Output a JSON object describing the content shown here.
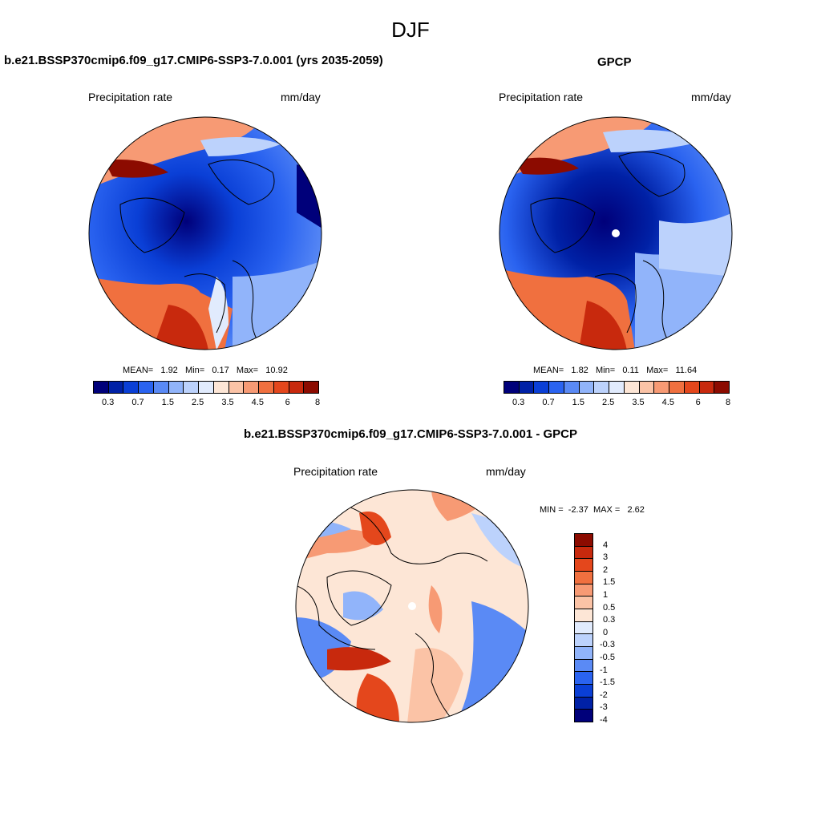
{
  "main_title": "DJF",
  "panels": [
    {
      "title": "b.e21.BSSP370cmip6.f09_g17.CMIP6-SSP3-7.0.001 (yrs 2035-2059)",
      "left_label": "Precipitation rate",
      "right_label": "mm/day",
      "stats": {
        "mean_label": "MEAN=",
        "mean": "1.92",
        "min_label": "Min=",
        "min": "0.17",
        "max_label": "Max=",
        "max": "10.92"
      }
    },
    {
      "title": "GPCP",
      "left_label": "Precipitation rate",
      "right_label": "mm/day",
      "stats": {
        "mean_label": "MEAN=",
        "mean": "1.82",
        "min_label": "Min=",
        "min": "0.11",
        "max_label": "Max=",
        "max": "11.64"
      }
    },
    {
      "title": "b.e21.BSSP370cmip6.f09_g17.CMIP6-SSP3-7.0.001 - GPCP",
      "left_label": "Precipitation rate",
      "right_label": "mm/day",
      "stats": {
        "min_label": "MIN =",
        "min": "-2.37",
        "max_label": "MAX =",
        "max": "2.62"
      }
    }
  ],
  "precip_colorbar": {
    "colors": [
      "#00007a",
      "#0021a6",
      "#0a3fd6",
      "#2a63f0",
      "#5a8af5",
      "#91b4fa",
      "#bcd2fc",
      "#e1ebfd",
      "#fde6d6",
      "#fbc3a6",
      "#f79a74",
      "#f0703f",
      "#e4471c",
      "#c8290d",
      "#8c0b00"
    ],
    "ticks": [
      "0.3",
      "0.7",
      "1.5",
      "2.5",
      "3.5",
      "4.5",
      "6",
      "8"
    ]
  },
  "diff_colorbar": {
    "colors": [
      "#8c0b00",
      "#c8290d",
      "#e4471c",
      "#f0703f",
      "#f79a74",
      "#fbc3a6",
      "#fde6d6",
      "#e1ebfd",
      "#bcd2fc",
      "#91b4fa",
      "#5a8af5",
      "#2a63f0",
      "#0a3fd6",
      "#0021a6",
      "#00007a"
    ],
    "ticks": [
      "4",
      "3",
      "2",
      "1.5",
      "1",
      "0.5",
      "0.3",
      "0",
      "-0.3",
      "-0.5",
      "-1",
      "-1.5",
      "-2",
      "-3",
      "-4"
    ]
  }
}
